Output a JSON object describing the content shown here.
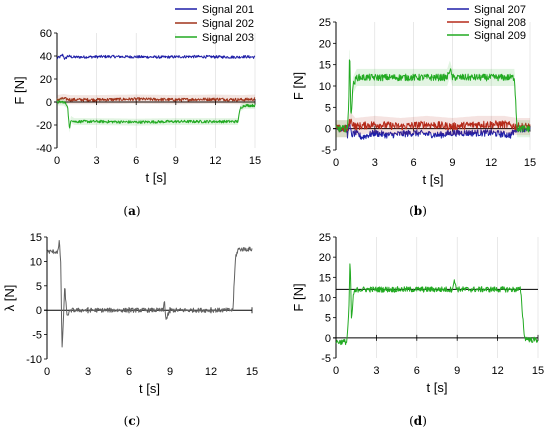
{
  "chart_data": [
    {
      "id": "a",
      "type": "line",
      "panel_label": "a",
      "xlabel": "t [s]",
      "ylabel": "F [N]",
      "xlim": [
        0,
        15
      ],
      "ylim": [
        -40,
        60
      ],
      "xticks": [
        0,
        3,
        6,
        9,
        12,
        15
      ],
      "yticks": [
        -40,
        -20,
        0,
        20,
        40,
        60
      ],
      "grid": "vertical",
      "legend": "top-right",
      "series": [
        {
          "name": "Signal 201",
          "color": "#1f1fa8",
          "noise": 1.2,
          "band": 0,
          "points": [
            [
              0,
              38
            ],
            [
              0.2,
              39
            ],
            [
              0.45,
              41
            ],
            [
              0.6,
              37
            ],
            [
              0.8,
              40
            ],
            [
              1.2,
              39
            ],
            [
              4,
              39.5
            ],
            [
              8,
              39
            ],
            [
              10,
              39.5
            ],
            [
              13.8,
              39
            ],
            [
              14,
              39.5
            ],
            [
              15,
              39
            ]
          ]
        },
        {
          "name": "Signal 202",
          "color": "#a0341b",
          "noise": 1.3,
          "band": 4,
          "points": [
            [
              0,
              2
            ],
            [
              0.5,
              3
            ],
            [
              1,
              2
            ],
            [
              3,
              2
            ],
            [
              6,
              2.5
            ],
            [
              9,
              2
            ],
            [
              12,
              2.5
            ],
            [
              14,
              2
            ],
            [
              15,
              2.5
            ]
          ]
        },
        {
          "name": "Signal 203",
          "color": "#22aa22",
          "noise": 1.2,
          "band": 3,
          "points": [
            [
              0,
              0
            ],
            [
              0.5,
              0
            ],
            [
              0.8,
              -3
            ],
            [
              0.95,
              -25
            ],
            [
              1.05,
              -15
            ],
            [
              1.3,
              -17
            ],
            [
              3,
              -17
            ],
            [
              6,
              -17.5
            ],
            [
              9,
              -17
            ],
            [
              12,
              -17
            ],
            [
              13.7,
              -17
            ],
            [
              13.9,
              -5
            ],
            [
              14.2,
              -3
            ],
            [
              15,
              -3
            ]
          ]
        }
      ]
    },
    {
      "id": "b",
      "type": "line",
      "panel_label": "b",
      "xlabel": "t [s]",
      "ylabel": "F [N]",
      "xlim": [
        0,
        15
      ],
      "ylim": [
        -5,
        25
      ],
      "xticks": [
        0,
        3,
        6,
        9,
        12,
        15
      ],
      "yticks": [
        -5,
        0,
        5,
        10,
        15,
        20,
        25
      ],
      "grid": "vertical",
      "legend": "top-right",
      "series": [
        {
          "name": "Signal 207",
          "color": "#1f1fa8",
          "noise": 0.8,
          "band": 0,
          "points": [
            [
              0,
              0
            ],
            [
              0.8,
              0
            ],
            [
              0.9,
              -2
            ],
            [
              1,
              1.5
            ],
            [
              1.2,
              -1.5
            ],
            [
              1.5,
              -1
            ],
            [
              2,
              -2
            ],
            [
              3,
              -1
            ],
            [
              4,
              -1.5
            ],
            [
              6,
              -1
            ],
            [
              8,
              -1.5
            ],
            [
              9,
              -1
            ],
            [
              12,
              -1
            ],
            [
              13.5,
              -1.5
            ],
            [
              14,
              0
            ],
            [
              15,
              0
            ]
          ]
        },
        {
          "name": "Signal 208",
          "color": "#b52a1a",
          "noise": 0.9,
          "band": 2,
          "points": [
            [
              0,
              0
            ],
            [
              0.9,
              0
            ],
            [
              1.1,
              2
            ],
            [
              1.5,
              0.5
            ],
            [
              3,
              1
            ],
            [
              5,
              0.5
            ],
            [
              7,
              1
            ],
            [
              9,
              0.5
            ],
            [
              11,
              1
            ],
            [
              13,
              1
            ],
            [
              14,
              0.5
            ],
            [
              15,
              0.5
            ]
          ]
        },
        {
          "name": "Signal 209",
          "color": "#22aa22",
          "noise": 0.8,
          "band": 2,
          "points": [
            [
              0,
              0
            ],
            [
              0.9,
              0
            ],
            [
              1.0,
              8
            ],
            [
              1.05,
              20
            ],
            [
              1.15,
              2
            ],
            [
              1.3,
              10
            ],
            [
              1.6,
              12
            ],
            [
              3,
              12
            ],
            [
              6,
              12
            ],
            [
              8.6,
              12
            ],
            [
              8.8,
              14
            ],
            [
              9,
              12
            ],
            [
              12,
              12
            ],
            [
              13.8,
              12
            ],
            [
              14,
              0
            ],
            [
              15,
              0
            ]
          ]
        }
      ]
    },
    {
      "id": "c",
      "type": "line",
      "panel_label": "c",
      "xlabel": "t [s]",
      "ylabel": "λ [N]",
      "xlim": [
        0,
        15
      ],
      "ylim": [
        -10,
        15
      ],
      "xticks": [
        0,
        3,
        6,
        9,
        12,
        15
      ],
      "yticks": [
        -10,
        -5,
        0,
        5,
        10,
        15
      ],
      "grid": "none",
      "legend": "none",
      "series": [
        {
          "name": "",
          "color": "#606060",
          "noise": 0.45,
          "band": 0,
          "points": [
            [
              0,
              12
            ],
            [
              0.8,
              12
            ],
            [
              0.9,
              14
            ],
            [
              1.0,
              10
            ],
            [
              1.1,
              -8
            ],
            [
              1.2,
              -2
            ],
            [
              1.3,
              5
            ],
            [
              1.45,
              -1
            ],
            [
              1.8,
              0
            ],
            [
              3,
              0
            ],
            [
              6,
              0
            ],
            [
              8.5,
              0
            ],
            [
              8.6,
              2
            ],
            [
              8.7,
              -2
            ],
            [
              9,
              0
            ],
            [
              12,
              0
            ],
            [
              13.6,
              0
            ],
            [
              13.8,
              11
            ],
            [
              14,
              12.5
            ],
            [
              15,
              12.5
            ]
          ]
        }
      ]
    },
    {
      "id": "d",
      "type": "line",
      "panel_label": "d",
      "xlabel": "t [s]",
      "ylabel": "F [N]",
      "xlim": [
        0,
        15
      ],
      "ylim": [
        -5,
        25
      ],
      "xticks": [
        0,
        3,
        6,
        9,
        12,
        15
      ],
      "yticks": [
        -5,
        0,
        5,
        10,
        15,
        20,
        25
      ],
      "grid": "vertical",
      "legend": "none",
      "reference_line": 12,
      "series": [
        {
          "name": "",
          "color": "#22aa22",
          "noise": 0.7,
          "band": 0,
          "points": [
            [
              0,
              -1
            ],
            [
              0.8,
              -1
            ],
            [
              0.95,
              6
            ],
            [
              1.05,
              20
            ],
            [
              1.15,
              4
            ],
            [
              1.3,
              11
            ],
            [
              1.6,
              12
            ],
            [
              3,
              12
            ],
            [
              6,
              12
            ],
            [
              8.6,
              12
            ],
            [
              8.8,
              14
            ],
            [
              9,
              12
            ],
            [
              12,
              12
            ],
            [
              13.7,
              12
            ],
            [
              14,
              0
            ],
            [
              14.5,
              -0.5
            ],
            [
              15,
              -0.5
            ]
          ]
        }
      ]
    }
  ]
}
